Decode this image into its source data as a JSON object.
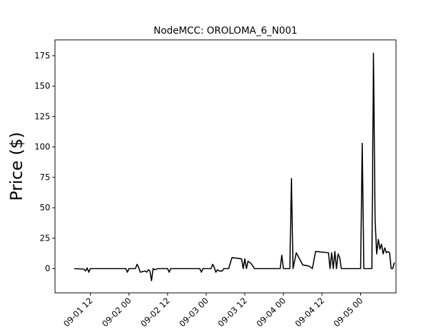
{
  "chart_data": {
    "type": "line",
    "title": "NodeMCC: OROLOMA_6_N001",
    "xlabel": "",
    "ylabel": "Price ($)",
    "xlim": [
      "2023-09-01 01:00",
      "2023-09-05 11:00"
    ],
    "ylim": [
      -20,
      188
    ],
    "xticks": [
      {
        "x": "2023-09-01 12:00",
        "label": "09-01 12"
      },
      {
        "x": "2023-09-02 00:00",
        "label": "09-02 00"
      },
      {
        "x": "2023-09-02 12:00",
        "label": "09-02 12"
      },
      {
        "x": "2023-09-03 00:00",
        "label": "09-03 00"
      },
      {
        "x": "2023-09-03 12:00",
        "label": "09-03 12"
      },
      {
        "x": "2023-09-04 00:00",
        "label": "09-04 00"
      },
      {
        "x": "2023-09-04 12:00",
        "label": "09-04 12"
      },
      {
        "x": "2023-09-05 00:00",
        "label": "09-05 00"
      }
    ],
    "yticks": [
      0,
      25,
      50,
      75,
      100,
      125,
      150,
      175
    ],
    "series": [
      {
        "color": "#000000",
        "points": [
          [
            "2023-09-01 07:00",
            0
          ],
          [
            "2023-09-01 10:00",
            -0.5
          ],
          [
            "2023-09-01 10:30",
            -2
          ],
          [
            "2023-09-01 11:00",
            0.5
          ],
          [
            "2023-09-01 11:30",
            -3
          ],
          [
            "2023-09-01 12:00",
            0
          ],
          [
            "2023-09-01 18:00",
            0
          ],
          [
            "2023-09-01 23:00",
            0
          ],
          [
            "2023-09-01 23:30",
            -3
          ],
          [
            "2023-09-02 00:00",
            0
          ],
          [
            "2023-09-02 02:00",
            0
          ],
          [
            "2023-09-02 02:30",
            3.5
          ],
          [
            "2023-09-02 03:00",
            1
          ],
          [
            "2023-09-02 03:30",
            -3
          ],
          [
            "2023-09-02 05:00",
            -2
          ],
          [
            "2023-09-02 05:30",
            -3
          ],
          [
            "2023-09-02 06:00",
            -1
          ],
          [
            "2023-09-02 06:30",
            -2
          ],
          [
            "2023-09-02 07:00",
            -10
          ],
          [
            "2023-09-02 07:30",
            0
          ],
          [
            "2023-09-02 08:00",
            -1
          ],
          [
            "2023-09-02 09:00",
            0
          ],
          [
            "2023-09-02 12:00",
            0
          ],
          [
            "2023-09-02 12:30",
            -3
          ],
          [
            "2023-09-02 13:00",
            0
          ],
          [
            "2023-09-02 22:00",
            0
          ],
          [
            "2023-09-02 22:30",
            -3
          ],
          [
            "2023-09-02 23:00",
            0
          ],
          [
            "2023-09-03 01:30",
            0
          ],
          [
            "2023-09-03 02:00",
            3.5
          ],
          [
            "2023-09-03 02:30",
            1
          ],
          [
            "2023-09-03 03:00",
            -3
          ],
          [
            "2023-09-03 03:30",
            -1
          ],
          [
            "2023-09-03 04:00",
            -2
          ],
          [
            "2023-09-03 05:00",
            -2
          ],
          [
            "2023-09-03 05:30",
            0
          ],
          [
            "2023-09-03 07:00",
            0
          ],
          [
            "2023-09-03 08:00",
            9
          ],
          [
            "2023-09-03 11:00",
            8
          ],
          [
            "2023-09-03 11:30",
            0
          ],
          [
            "2023-09-03 12:00",
            8
          ],
          [
            "2023-09-03 12:30",
            0
          ],
          [
            "2023-09-03 13:00",
            6
          ],
          [
            "2023-09-03 14:00",
            4
          ],
          [
            "2023-09-03 15:00",
            0
          ],
          [
            "2023-09-03 23:00",
            0
          ],
          [
            "2023-09-03 23:30",
            11
          ],
          [
            "2023-09-04 00:00",
            0
          ],
          [
            "2023-09-04 02:00",
            0
          ],
          [
            "2023-09-04 02:30",
            74
          ],
          [
            "2023-09-04 03:00",
            0
          ],
          [
            "2023-09-04 04:00",
            13
          ],
          [
            "2023-09-04 05:00",
            8
          ],
          [
            "2023-09-04 06:00",
            3
          ],
          [
            "2023-09-04 08:00",
            2
          ],
          [
            "2023-09-04 09:00",
            0
          ],
          [
            "2023-09-04 10:00",
            14
          ],
          [
            "2023-09-04 14:00",
            13
          ],
          [
            "2023-09-04 14:30",
            0
          ],
          [
            "2023-09-04 15:00",
            13
          ],
          [
            "2023-09-04 15:30",
            0
          ],
          [
            "2023-09-04 16:00",
            14
          ],
          [
            "2023-09-04 16:30",
            0
          ],
          [
            "2023-09-04 17:00",
            12
          ],
          [
            "2023-09-04 17:30",
            9
          ],
          [
            "2023-09-04 18:00",
            0
          ],
          [
            "2023-09-04 23:00",
            0
          ],
          [
            "2023-09-05 00:00",
            0
          ],
          [
            "2023-09-05 00:30",
            103
          ],
          [
            "2023-09-05 01:00",
            0
          ],
          [
            "2023-09-05 03:30",
            0
          ],
          [
            "2023-09-05 04:00",
            177
          ],
          [
            "2023-09-05 04:30",
            40
          ],
          [
            "2023-09-05 05:00",
            12
          ],
          [
            "2023-09-05 05:30",
            24
          ],
          [
            "2023-09-05 06:00",
            16
          ],
          [
            "2023-09-05 06:30",
            20
          ],
          [
            "2023-09-05 07:00",
            12
          ],
          [
            "2023-09-05 07:30",
            17
          ],
          [
            "2023-09-05 08:00",
            13
          ],
          [
            "2023-09-05 08:30",
            14
          ],
          [
            "2023-09-05 09:00",
            13
          ],
          [
            "2023-09-05 09:30",
            0
          ],
          [
            "2023-09-05 10:00",
            0
          ],
          [
            "2023-09-05 10:30",
            5
          ]
        ]
      }
    ],
    "grid": false,
    "legend": "none"
  }
}
